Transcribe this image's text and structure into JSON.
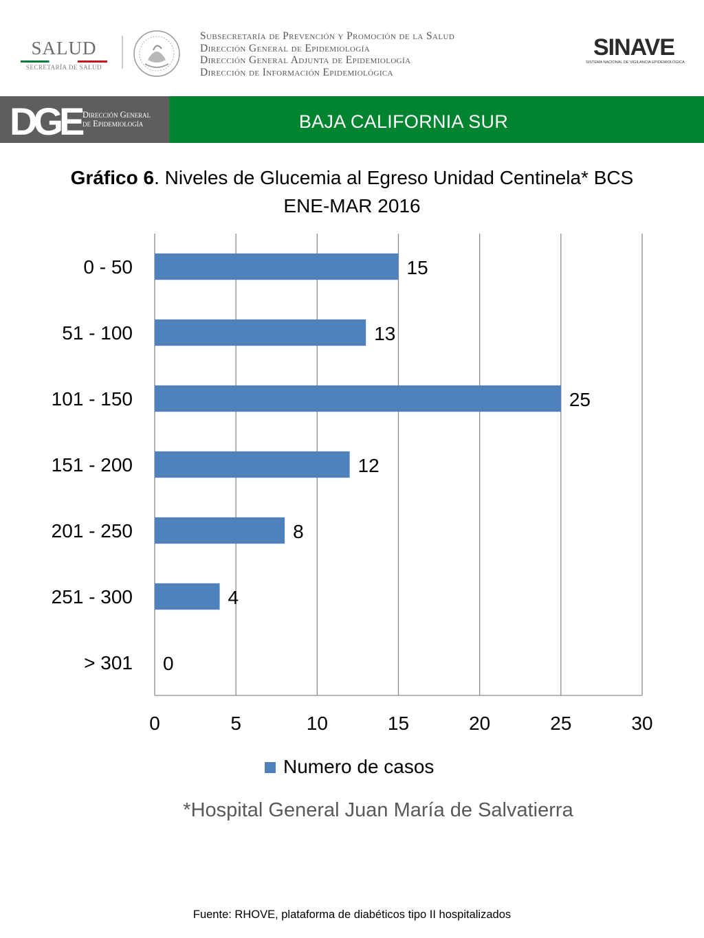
{
  "header": {
    "salud_logo": {
      "word": "SALUD",
      "subtitle": "SECRETARÍA DE SALUD"
    },
    "sub_lines": [
      "Subsecretaría de Prevención y Promoción de la Salud",
      "Dirección General de Epidemiología",
      "Dirección General Adjunta de Epidemiología",
      "Dirección de Información Epidemiológica"
    ],
    "sinave_logo": {
      "word": "SINAVE",
      "subtitle": "SISTEMA NACIONAL DE VIGILANCIA EPIDEMIOLÓGICA"
    },
    "dge_logo": {
      "letters": "DGE",
      "text_line1": "Dirección General",
      "text_line2": "de Epidemiología"
    },
    "state": "BAJA CALIFORNIA SUR"
  },
  "title": {
    "bold_part": "Gráfico 6",
    "rest": ". Niveles de Glucemia al Egreso  Unidad Centinela* BCS",
    "line2": "ENE-MAR 2016"
  },
  "chart_data": {
    "type": "bar",
    "orientation": "horizontal",
    "categories": [
      "0 - 50",
      "51 - 100",
      "101 - 150",
      "151 - 200",
      "201 - 250",
      "251 - 300",
      "> 301"
    ],
    "series": [
      {
        "name": "Numero de casos",
        "values": [
          15,
          13,
          25,
          12,
          8,
          4,
          0
        ],
        "color": "#4f81bd"
      }
    ],
    "xlim": [
      0,
      30
    ],
    "xticks": [
      0,
      5,
      10,
      15,
      20,
      25,
      30
    ],
    "grid": true,
    "data_labels": true,
    "legend_position": "bottom"
  },
  "legend_label": "Numero de casos",
  "footnote": "*Hospital General Juan María de Salvatierra",
  "source": "Fuente: RHOVE, plataforma de diabéticos tipo II hospitalizados"
}
